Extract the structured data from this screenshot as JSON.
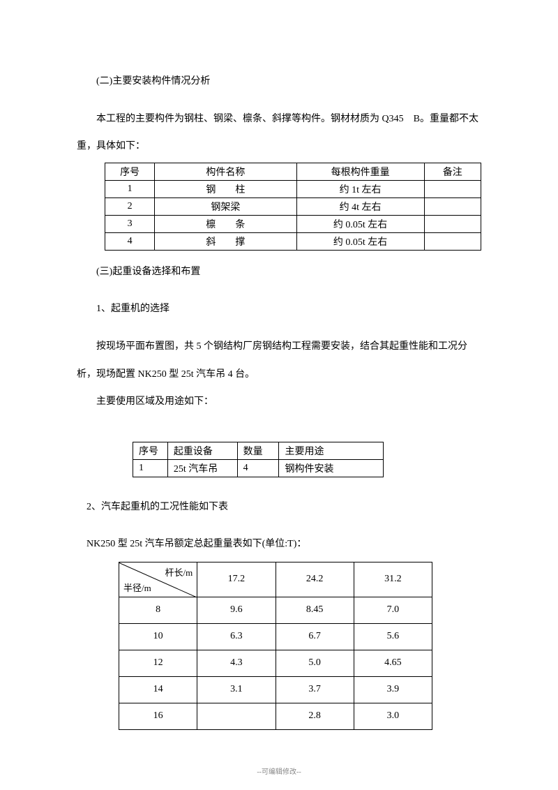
{
  "section2_title": "(二)主要安装构件情况分析",
  "p2_1": "本工程的主要构件为钢柱、钢梁、檩条、斜撑等构件。钢材材质为 Q345　B。重量都不太",
  "p2_2": "重，具体如下：",
  "table1": {
    "headers": [
      "序号",
      "构件名称",
      "每根构件重量",
      "备注"
    ],
    "rows": [
      [
        "1",
        "钢　　柱",
        "约 1t 左右",
        ""
      ],
      [
        "2",
        "钢架梁",
        "约 4t 左右",
        ""
      ],
      [
        "3",
        "檩　　条",
        "约 0.05t 左右",
        ""
      ],
      [
        "4",
        "斜　　撑",
        "约 0.05t 左右",
        ""
      ]
    ]
  },
  "section3_title": "(三)起重设备选择和布置",
  "p3_1": "1、起重机的选择",
  "p3_2": "按现场平面布置图，共 5 个钢结构厂房钢结构工程需要安装，结合其起重性能和工况分",
  "p3_3": "析，现场配置 NK250 型 25t 汽车吊 4 台。",
  "p3_4": "主要使用区域及用途如下：",
  "table2": {
    "headers": [
      "序号",
      "起重设备",
      "数量",
      "主要用途"
    ],
    "rows": [
      [
        "1",
        "25t 汽车吊",
        "4",
        "钢构件安装"
      ]
    ]
  },
  "p3_5": "2、汽车起重机的工况性能如下表",
  "p3_6": "NK250 型 25t 汽车吊额定总起重量表如下(单位:T)：",
  "table3": {
    "diag_top": "杆长/m",
    "diag_bot": "半径/m",
    "col_headers": [
      "17.2",
      "24.2",
      "31.2"
    ],
    "rows": [
      [
        "8",
        "9.6",
        "8.45",
        "7.0"
      ],
      [
        "10",
        "6.3",
        "6.7",
        "5.6"
      ],
      [
        "12",
        "4.3",
        "5.0",
        "4.65"
      ],
      [
        "14",
        "3.1",
        "3.7",
        "3.9"
      ],
      [
        "16",
        "",
        "2.8",
        "3.0"
      ]
    ]
  },
  "footer": "--可编辑修改--"
}
